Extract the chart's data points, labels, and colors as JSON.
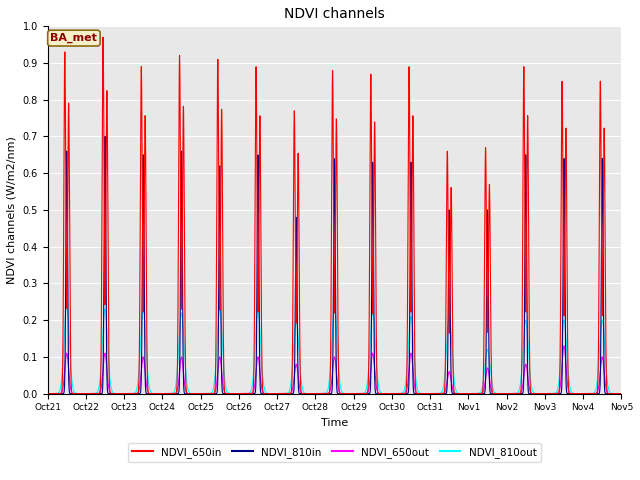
{
  "title": "NDVI channels",
  "ylabel": "NDVI channels (W/m2/nm)",
  "xlabel": "Time",
  "ylim": [
    0.0,
    1.0
  ],
  "background_color": "#e8e8e8",
  "annotation_text": "BA_met",
  "annotation_bg": "#f5f0c8",
  "annotation_border": "#8B6914",
  "annotation_text_color": "#8B0000",
  "colors": {
    "NDVI_650in": "#ff0000",
    "NDVI_810in": "#00008B",
    "NDVI_650out": "#ff00ff",
    "NDVI_810out": "#00ffff"
  },
  "num_days": 15,
  "peak_heights_650in": [
    0.93,
    0.97,
    0.89,
    0.92,
    0.91,
    0.89,
    0.77,
    0.88,
    0.87,
    0.89,
    0.66,
    0.67,
    0.89,
    0.85,
    0.85
  ],
  "peak_heights_810in": [
    0.66,
    0.7,
    0.65,
    0.66,
    0.62,
    0.65,
    0.48,
    0.64,
    0.63,
    0.63,
    0.5,
    0.5,
    0.65,
    0.64,
    0.64
  ],
  "peak_heights_650out": [
    0.11,
    0.11,
    0.1,
    0.1,
    0.1,
    0.1,
    0.08,
    0.1,
    0.11,
    0.11,
    0.06,
    0.07,
    0.08,
    0.13,
    0.1
  ],
  "peak_heights_810out": [
    0.24,
    0.23,
    0.23,
    0.22,
    0.23,
    0.23,
    0.2,
    0.23,
    0.22,
    0.21,
    0.21,
    0.12,
    0.2,
    0.2,
    0.2
  ],
  "tick_labels": [
    "Oct 21",
    "Oct 22",
    "Oct 23",
    "Oct 24",
    "Oct 25",
    "Oct 26",
    "Oct 27",
    "Oct 28",
    "Oct 29",
    "Oct 30",
    "Oct 31",
    "Nov 1",
    "Nov 2",
    "Nov 3",
    "Nov 4",
    "Nov 5"
  ],
  "tick_positions": [
    0,
    1,
    2,
    3,
    4,
    5,
    6,
    7,
    8,
    9,
    10,
    11,
    12,
    13,
    14,
    15
  ]
}
